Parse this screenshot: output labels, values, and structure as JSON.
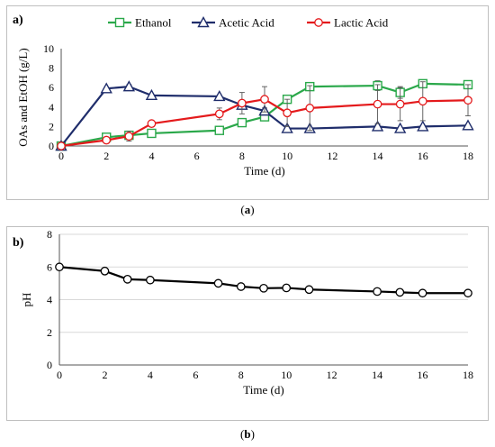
{
  "captions": {
    "a": "a",
    "b": "b"
  },
  "chart_data": [
    {
      "type": "line",
      "panel_label": "a)",
      "xlabel": "Time (d)",
      "ylabel": "OAs and EtOH (g/L)",
      "xlim": [
        0,
        18
      ],
      "ylim": [
        0,
        10
      ],
      "xticks": [
        0,
        2,
        4,
        6,
        8,
        10,
        12,
        14,
        16,
        18
      ],
      "yticks": [
        0,
        2,
        4,
        6,
        8,
        10
      ],
      "grid": false,
      "legend": "top",
      "series": [
        {
          "name": "Ethanol",
          "color": "#2aa84a",
          "marker": "square",
          "x": [
            0,
            2,
            3,
            4,
            7,
            8,
            9,
            10,
            11,
            14,
            15,
            16,
            18
          ],
          "y": [
            0,
            0.9,
            1.1,
            1.3,
            1.6,
            2.4,
            3.0,
            4.8,
            6.1,
            6.2,
            5.5,
            6.4,
            6.3
          ],
          "err": [
            0,
            0.1,
            0.3,
            0.1,
            0.1,
            0.2,
            0.2,
            0.4,
            0.2,
            0.5,
            0.6,
            0.2,
            0.3
          ]
        },
        {
          "name": "Acetic Acid",
          "color": "#1f2d6b",
          "marker": "triangle",
          "x": [
            0,
            2,
            3,
            4,
            7,
            8,
            9,
            10,
            11,
            14,
            15,
            16,
            18
          ],
          "y": [
            0,
            5.9,
            6.1,
            5.2,
            5.1,
            4.2,
            3.6,
            1.8,
            1.8,
            2.0,
            1.8,
            2.0,
            2.1
          ],
          "err": [
            0,
            0.1,
            0.2,
            0.1,
            0.1,
            0.2,
            0.3,
            0.1,
            0.1,
            0.2,
            0.1,
            0.1,
            0.1
          ]
        },
        {
          "name": "Lactic Acid",
          "color": "#e41a1c",
          "marker": "circle",
          "x": [
            0,
            2,
            3,
            4,
            7,
            8,
            9,
            10,
            11,
            14,
            15,
            16,
            18
          ],
          "y": [
            0,
            0.6,
            1.0,
            2.3,
            3.3,
            4.4,
            4.8,
            3.4,
            3.9,
            4.3,
            4.3,
            4.6,
            4.7
          ],
          "err": [
            0,
            0.1,
            0.5,
            0.1,
            0.6,
            1.1,
            1.3,
            1.4,
            2.3,
            2.0,
            1.7,
            2.0,
            1.6
          ]
        }
      ]
    },
    {
      "type": "line",
      "panel_label": "b)",
      "xlabel": "Time (d)",
      "ylabel": "pH",
      "xlim": [
        0,
        18
      ],
      "ylim": [
        0,
        8
      ],
      "xticks": [
        0,
        2,
        4,
        6,
        8,
        10,
        12,
        14,
        16,
        18
      ],
      "yticks": [
        0,
        2,
        4,
        6,
        8
      ],
      "grid": true,
      "legend": "none",
      "series": [
        {
          "name": "",
          "color": "#000000",
          "marker": "circle",
          "x": [
            0,
            2,
            3,
            4,
            7,
            8,
            9,
            10,
            11,
            14,
            15,
            16,
            18
          ],
          "y": [
            6.0,
            5.75,
            5.25,
            5.2,
            5.0,
            4.8,
            4.7,
            4.72,
            4.62,
            4.5,
            4.45,
            4.4,
            4.4
          ]
        }
      ]
    }
  ]
}
